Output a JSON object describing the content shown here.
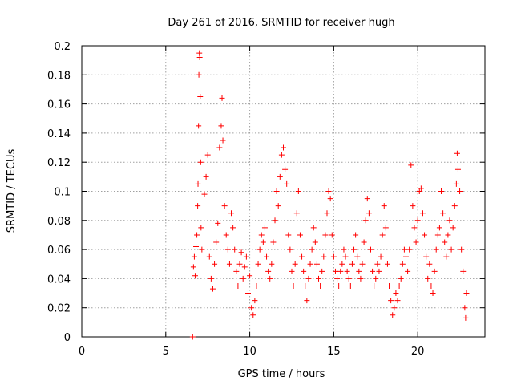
{
  "chart_data": {
    "type": "scatter",
    "title": "Day 261 of 2016, SRMTID for receiver hugh",
    "xlabel": "GPS time / hours",
    "ylabel": "SRMTID / TECUs",
    "xlim": [
      0,
      24
    ],
    "ylim": [
      0,
      0.2
    ],
    "x_ticks": [
      0,
      5,
      10,
      15,
      20
    ],
    "x_tick_labels": [
      "0",
      "5",
      "10",
      "15",
      "20"
    ],
    "y_ticks": [
      0,
      0.02,
      0.04,
      0.06,
      0.08,
      0.1,
      0.12,
      0.14,
      0.16,
      0.18,
      0.2
    ],
    "y_tick_labels": [
      "0",
      "0.02",
      "0.04",
      "0.06",
      "0.08",
      "0.1",
      "0.12",
      "0.14",
      "0.16",
      "0.18",
      "0.2"
    ],
    "grid": true,
    "marker": "plus",
    "color": "#ff0000",
    "series": [
      {
        "name": "SRMTID",
        "points": [
          [
            6.6,
            0.0
          ],
          [
            6.65,
            0.048
          ],
          [
            6.7,
            0.055
          ],
          [
            6.75,
            0.042
          ],
          [
            6.8,
            0.062
          ],
          [
            6.85,
            0.07
          ],
          [
            6.9,
            0.09
          ],
          [
            6.92,
            0.105
          ],
          [
            6.95,
            0.145
          ],
          [
            6.97,
            0.18
          ],
          [
            7.0,
            0.195
          ],
          [
            7.02,
            0.192
          ],
          [
            7.05,
            0.165
          ],
          [
            7.08,
            0.12
          ],
          [
            7.1,
            0.075
          ],
          [
            7.15,
            0.06
          ],
          [
            7.3,
            0.098
          ],
          [
            7.4,
            0.11
          ],
          [
            7.5,
            0.125
          ],
          [
            7.6,
            0.055
          ],
          [
            7.7,
            0.04
          ],
          [
            7.8,
            0.033
          ],
          [
            7.9,
            0.05
          ],
          [
            8.0,
            0.065
          ],
          [
            8.1,
            0.078
          ],
          [
            8.2,
            0.13
          ],
          [
            8.3,
            0.145
          ],
          [
            8.35,
            0.164
          ],
          [
            8.4,
            0.135
          ],
          [
            8.5,
            0.09
          ],
          [
            8.6,
            0.07
          ],
          [
            8.7,
            0.06
          ],
          [
            8.8,
            0.05
          ],
          [
            8.9,
            0.085
          ],
          [
            9.0,
            0.075
          ],
          [
            9.1,
            0.06
          ],
          [
            9.2,
            0.045
          ],
          [
            9.3,
            0.035
          ],
          [
            9.4,
            0.05
          ],
          [
            9.5,
            0.058
          ],
          [
            9.6,
            0.04
          ],
          [
            9.7,
            0.048
          ],
          [
            9.8,
            0.055
          ],
          [
            9.9,
            0.03
          ],
          [
            10.0,
            0.042
          ],
          [
            10.1,
            0.02
          ],
          [
            10.2,
            0.015
          ],
          [
            10.3,
            0.025
          ],
          [
            10.4,
            0.035
          ],
          [
            10.5,
            0.05
          ],
          [
            10.6,
            0.06
          ],
          [
            10.7,
            0.07
          ],
          [
            10.8,
            0.065
          ],
          [
            10.9,
            0.075
          ],
          [
            11.0,
            0.055
          ],
          [
            11.1,
            0.045
          ],
          [
            11.2,
            0.04
          ],
          [
            11.3,
            0.05
          ],
          [
            11.4,
            0.065
          ],
          [
            11.5,
            0.08
          ],
          [
            11.6,
            0.1
          ],
          [
            11.7,
            0.09
          ],
          [
            11.8,
            0.11
          ],
          [
            11.9,
            0.125
          ],
          [
            12.0,
            0.13
          ],
          [
            12.1,
            0.115
          ],
          [
            12.2,
            0.105
          ],
          [
            12.3,
            0.07
          ],
          [
            12.4,
            0.06
          ],
          [
            12.5,
            0.045
          ],
          [
            12.6,
            0.035
          ],
          [
            12.7,
            0.05
          ],
          [
            12.8,
            0.085
          ],
          [
            12.9,
            0.1
          ],
          [
            13.0,
            0.07
          ],
          [
            13.1,
            0.055
          ],
          [
            13.2,
            0.045
          ],
          [
            13.3,
            0.035
          ],
          [
            13.4,
            0.025
          ],
          [
            13.5,
            0.04
          ],
          [
            13.6,
            0.05
          ],
          [
            13.7,
            0.06
          ],
          [
            13.8,
            0.075
          ],
          [
            13.9,
            0.065
          ],
          [
            14.0,
            0.05
          ],
          [
            14.1,
            0.04
          ],
          [
            14.2,
            0.035
          ],
          [
            14.3,
            0.045
          ],
          [
            14.4,
            0.055
          ],
          [
            14.5,
            0.07
          ],
          [
            14.6,
            0.085
          ],
          [
            14.7,
            0.1
          ],
          [
            14.8,
            0.095
          ],
          [
            14.9,
            0.07
          ],
          [
            15.0,
            0.055
          ],
          [
            15.1,
            0.045
          ],
          [
            15.2,
            0.04
          ],
          [
            15.3,
            0.035
          ],
          [
            15.4,
            0.045
          ],
          [
            15.5,
            0.05
          ],
          [
            15.6,
            0.06
          ],
          [
            15.7,
            0.055
          ],
          [
            15.8,
            0.045
          ],
          [
            15.9,
            0.04
          ],
          [
            16.0,
            0.035
          ],
          [
            16.1,
            0.05
          ],
          [
            16.2,
            0.06
          ],
          [
            16.3,
            0.07
          ],
          [
            16.4,
            0.055
          ],
          [
            16.5,
            0.045
          ],
          [
            16.6,
            0.04
          ],
          [
            16.7,
            0.05
          ],
          [
            16.8,
            0.065
          ],
          [
            16.9,
            0.08
          ],
          [
            17.0,
            0.095
          ],
          [
            17.1,
            0.085
          ],
          [
            17.2,
            0.06
          ],
          [
            17.3,
            0.045
          ],
          [
            17.4,
            0.035
          ],
          [
            17.5,
            0.04
          ],
          [
            17.6,
            0.05
          ],
          [
            17.7,
            0.045
          ],
          [
            17.8,
            0.055
          ],
          [
            17.9,
            0.07
          ],
          [
            18.0,
            0.09
          ],
          [
            18.1,
            0.075
          ],
          [
            18.2,
            0.05
          ],
          [
            18.3,
            0.035
          ],
          [
            18.4,
            0.025
          ],
          [
            18.5,
            0.015
          ],
          [
            18.6,
            0.02
          ],
          [
            18.7,
            0.03
          ],
          [
            18.8,
            0.025
          ],
          [
            18.9,
            0.035
          ],
          [
            19.0,
            0.04
          ],
          [
            19.1,
            0.05
          ],
          [
            19.2,
            0.06
          ],
          [
            19.3,
            0.055
          ],
          [
            19.4,
            0.045
          ],
          [
            19.5,
            0.06
          ],
          [
            19.6,
            0.118
          ],
          [
            19.7,
            0.09
          ],
          [
            19.8,
            0.075
          ],
          [
            19.9,
            0.065
          ],
          [
            20.0,
            0.08
          ],
          [
            20.1,
            0.1
          ],
          [
            20.2,
            0.102
          ],
          [
            20.3,
            0.085
          ],
          [
            20.4,
            0.07
          ],
          [
            20.5,
            0.055
          ],
          [
            20.6,
            0.04
          ],
          [
            20.7,
            0.05
          ],
          [
            20.8,
            0.035
          ],
          [
            20.9,
            0.03
          ],
          [
            21.0,
            0.045
          ],
          [
            21.1,
            0.06
          ],
          [
            21.2,
            0.07
          ],
          [
            21.3,
            0.075
          ],
          [
            21.4,
            0.1
          ],
          [
            21.5,
            0.085
          ],
          [
            21.6,
            0.065
          ],
          [
            21.7,
            0.055
          ],
          [
            21.8,
            0.07
          ],
          [
            21.9,
            0.08
          ],
          [
            22.0,
            0.06
          ],
          [
            22.1,
            0.075
          ],
          [
            22.2,
            0.09
          ],
          [
            22.3,
            0.105
          ],
          [
            22.35,
            0.126
          ],
          [
            22.4,
            0.115
          ],
          [
            22.5,
            0.1
          ],
          [
            22.6,
            0.06
          ],
          [
            22.7,
            0.045
          ],
          [
            22.8,
            0.02
          ],
          [
            22.85,
            0.013
          ],
          [
            22.9,
            0.03
          ]
        ]
      }
    ]
  }
}
